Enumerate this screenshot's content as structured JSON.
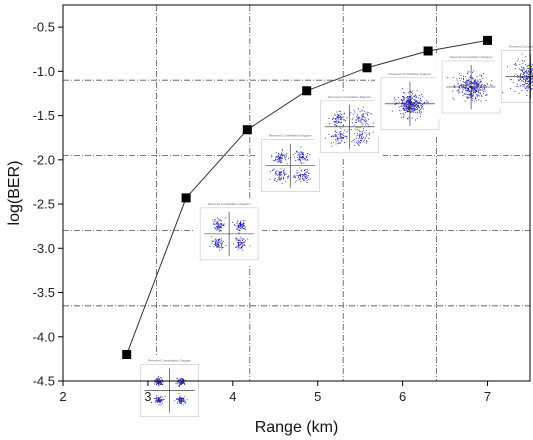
{
  "chart_data": {
    "type": "line",
    "title": "",
    "xlabel": "Range (km)",
    "ylabel": "log(BER)",
    "xlim": [
      2,
      7.5
    ],
    "ylim": [
      -4.5,
      -0.25
    ],
    "xticks": [
      2,
      3,
      4,
      5,
      6,
      7
    ],
    "yticks": [
      -4.5,
      -4.0,
      -3.5,
      -3.0,
      -2.5,
      -2.0,
      -1.5,
      -1.0,
      -0.5
    ],
    "xtick_labels": [
      "2",
      "3",
      "4",
      "5",
      "6",
      "7"
    ],
    "ytick_labels": [
      "-4.5",
      "-4.0",
      "-3.5",
      "-3.0",
      "-2.5",
      "-2.0",
      "-1.5",
      "-1.0",
      "-0.5"
    ],
    "grid": true,
    "marker": "square",
    "line_color": "#333333",
    "marker_color": "#000000",
    "inset_point_color": "#1a1aa8",
    "series": [
      {
        "x": [
          2.75,
          3.45,
          4.17,
          4.87,
          5.58,
          6.3,
          7.0
        ],
        "values": [
          -4.2,
          -2.43,
          -1.66,
          -1.22,
          -0.96,
          -0.77,
          -0.65
        ]
      }
    ],
    "gridlines": {
      "x": [
        3.1,
        4.2,
        5.3,
        6.4
      ],
      "y": [
        -3.65,
        -2.8,
        -1.95,
        -1.1
      ]
    },
    "insets": [
      {
        "label": "Received Constellation Diagram",
        "kind": "four-clusters",
        "x": 2.75,
        "y": -4.2
      },
      {
        "label": "Received Constellation Diagram",
        "kind": "four-clusters",
        "x": 3.45,
        "y": -2.43
      },
      {
        "label": "Received Constellation Diagram",
        "kind": "four-clusters",
        "x": 4.17,
        "y": -1.66
      },
      {
        "label": "Received Constellation Diagram",
        "kind": "four-clusters",
        "x": 4.87,
        "y": -1.22
      },
      {
        "label": "Received Constellation Diagram",
        "kind": "merged",
        "x": 5.58,
        "y": -0.96
      },
      {
        "label": "Received Constellation Diagram",
        "kind": "merged",
        "x": 6.3,
        "y": -0.77
      },
      {
        "label": "Received Constellation Diagram",
        "kind": "merged",
        "x": 7.0,
        "y": -0.65
      }
    ]
  }
}
